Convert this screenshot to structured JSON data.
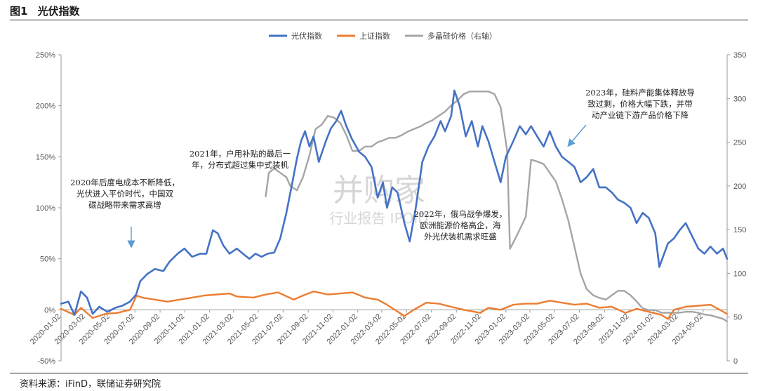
{
  "figure": {
    "number": "图1",
    "title": "光伏指数",
    "source": "资料来源：iFinD，联储证券研究院"
  },
  "colors": {
    "pv": "#4472C4",
    "sh": "#ED7D31",
    "poly": "#A5A5A5",
    "annotation_arrow": "#5B9BD5"
  },
  "watermark": {
    "main": "并购家",
    "sub": "行业报告 IPOID"
  },
  "annotations": [
    {
      "id": "a2020",
      "lines": [
        "2020年后度电成本不断降低，",
        "光伏进入平价时代，中国双",
        "碳战略带来需求高增"
      ]
    },
    {
      "id": "a2021",
      "lines": [
        "2021年，户用补贴的最后一",
        "年，分布式超过集中式装机"
      ]
    },
    {
      "id": "a2022",
      "lines": [
        "2022年，俄乌战争爆发，",
        "欧洲能源价格高企，海",
        "外光伏装机需求旺盛"
      ]
    },
    {
      "id": "a2023",
      "lines": [
        "2023年，硅料产能集体释放导",
        "致过剩，价格大幅下跌，并带",
        "动产业链下游产品价格下降"
      ]
    }
  ],
  "chart_data": {
    "type": "line",
    "title": "光伏指数",
    "legend_position": "top-center",
    "y_left": {
      "ticks": [
        "250%",
        "200%",
        "150%",
        "100%",
        "50%",
        "0%",
        "-50%"
      ],
      "range": [
        -50,
        250
      ],
      "unit": "%"
    },
    "y_right": {
      "ticks": [
        "350",
        "300",
        "250",
        "200",
        "150",
        "100",
        "50",
        "0"
      ],
      "range": [
        0,
        350
      ]
    },
    "x_ticks": [
      "2020-01-02",
      "2020-03-02",
      "2020-05-02",
      "2020-07-02",
      "2020-09-02",
      "2020-11-02",
      "2021-01-02",
      "2021-03-02",
      "2021-05-02",
      "2021-07-02",
      "2021-09-02",
      "2021-11-02",
      "2022-01-02",
      "2022-03-02",
      "2022-05-02",
      "2022-07-02",
      "2022-09-02",
      "2022-11-02",
      "2023-01-02",
      "2023-03-02",
      "2023-05-02",
      "2023-07-02",
      "2023-09-02",
      "2023-11-02",
      "2024-01-02",
      "2024-03-02",
      "2024-05-02"
    ],
    "x_range": [
      "2020-01-02",
      "2024-06-30"
    ],
    "series": [
      {
        "name": "光伏指数",
        "axis": "left",
        "x": [
          "2020-01-02",
          "2020-01-20",
          "2020-02-04",
          "2020-02-20",
          "2020-03-06",
          "2020-03-20",
          "2020-04-05",
          "2020-04-25",
          "2020-05-15",
          "2020-06-01",
          "2020-06-20",
          "2020-07-05",
          "2020-07-15",
          "2020-08-01",
          "2020-08-20",
          "2020-09-10",
          "2020-09-25",
          "2020-10-15",
          "2020-11-01",
          "2020-11-20",
          "2020-12-10",
          "2020-12-25",
          "2021-01-10",
          "2021-01-22",
          "2021-02-05",
          "2021-02-20",
          "2021-03-10",
          "2021-03-25",
          "2021-04-10",
          "2021-04-25",
          "2021-05-10",
          "2021-05-25",
          "2021-06-10",
          "2021-06-25",
          "2021-07-10",
          "2021-07-25",
          "2021-08-05",
          "2021-08-15",
          "2021-08-25",
          "2021-09-05",
          "2021-09-15",
          "2021-09-28",
          "2021-10-15",
          "2021-10-28",
          "2021-11-10",
          "2021-11-22",
          "2021-12-05",
          "2021-12-18",
          "2022-01-05",
          "2022-01-20",
          "2022-02-05",
          "2022-02-20",
          "2022-03-05",
          "2022-03-15",
          "2022-03-28",
          "2022-04-10",
          "2022-04-27",
          "2022-05-10",
          "2022-05-25",
          "2022-06-10",
          "2022-06-25",
          "2022-07-10",
          "2022-07-25",
          "2022-08-05",
          "2022-08-20",
          "2022-08-28",
          "2022-09-10",
          "2022-09-25",
          "2022-10-10",
          "2022-10-25",
          "2022-11-05",
          "2022-11-20",
          "2022-12-05",
          "2022-12-20",
          "2023-01-02",
          "2023-01-20",
          "2023-02-05",
          "2023-02-20",
          "2023-03-05",
          "2023-03-20",
          "2023-04-05",
          "2023-04-20",
          "2023-05-05",
          "2023-05-20",
          "2023-06-05",
          "2023-06-20",
          "2023-07-05",
          "2023-07-20",
          "2023-08-05",
          "2023-08-20",
          "2023-09-05",
          "2023-09-20",
          "2023-10-05",
          "2023-10-20",
          "2023-11-05",
          "2023-11-20",
          "2023-12-05",
          "2023-12-20",
          "2024-01-05",
          "2024-01-15",
          "2024-02-05",
          "2024-02-20",
          "2024-03-05",
          "2024-03-20",
          "2024-04-05",
          "2024-04-20",
          "2024-05-05",
          "2024-05-20",
          "2024-06-05",
          "2024-06-20",
          "2024-06-30"
        ],
        "y": [
          6,
          8,
          -5,
          18,
          12,
          -4,
          3,
          -2,
          2,
          4,
          8,
          15,
          28,
          35,
          40,
          38,
          47,
          55,
          60,
          52,
          55,
          55,
          78,
          75,
          63,
          55,
          60,
          55,
          50,
          55,
          52,
          55,
          56,
          70,
          95,
          125,
          148,
          165,
          175,
          160,
          170,
          145,
          165,
          178,
          185,
          195,
          180,
          168,
          155,
          150,
          140,
          110,
          125,
          100,
          120,
          115,
          85,
          67,
          100,
          145,
          160,
          170,
          185,
          175,
          190,
          215,
          200,
          170,
          185,
          160,
          180,
          165,
          145,
          125,
          150,
          165,
          180,
          172,
          180,
          170,
          160,
          175,
          160,
          150,
          145,
          140,
          125,
          130,
          138,
          120,
          120,
          115,
          108,
          105,
          100,
          85,
          95,
          90,
          75,
          42,
          65,
          70,
          78,
          85,
          72,
          60,
          55,
          62,
          55,
          60,
          50
        ]
      },
      {
        "name": "上证指数",
        "axis": "left",
        "x": [
          "2020-01-02",
          "2020-02-04",
          "2020-02-20",
          "2020-03-20",
          "2020-04-20",
          "2020-05-20",
          "2020-06-20",
          "2020-07-06",
          "2020-07-20",
          "2020-08-20",
          "2020-09-20",
          "2020-10-20",
          "2020-11-20",
          "2020-12-20",
          "2021-01-20",
          "2021-02-20",
          "2021-03-10",
          "2021-04-20",
          "2021-05-20",
          "2021-06-20",
          "2021-07-28",
          "2021-08-20",
          "2021-09-15",
          "2021-10-20",
          "2021-11-20",
          "2021-12-20",
          "2022-01-20",
          "2022-02-20",
          "2022-03-15",
          "2022-04-27",
          "2022-05-20",
          "2022-06-20",
          "2022-07-20",
          "2022-08-20",
          "2022-09-20",
          "2022-10-31",
          "2022-11-20",
          "2022-12-20",
          "2023-01-20",
          "2023-02-20",
          "2023-03-20",
          "2023-04-20",
          "2023-05-20",
          "2023-06-20",
          "2023-07-20",
          "2023-08-20",
          "2023-09-20",
          "2023-10-23",
          "2023-11-20",
          "2023-12-20",
          "2024-01-20",
          "2024-02-05",
          "2024-02-20",
          "2024-03-20",
          "2024-04-20",
          "2024-05-20",
          "2024-06-30"
        ],
        "y": [
          1,
          -5,
          2,
          -8,
          -4,
          -3,
          0,
          14,
          12,
          10,
          8,
          10,
          12,
          14,
          15,
          16,
          13,
          12,
          15,
          17,
          10,
          14,
          18,
          15,
          16,
          17,
          12,
          10,
          5,
          -6,
          0,
          7,
          6,
          3,
          0,
          -3,
          2,
          0,
          5,
          6,
          6,
          9,
          7,
          5,
          6,
          2,
          3,
          -3,
          1,
          -2,
          -5,
          -9,
          0,
          3,
          4,
          5,
          -4
        ]
      },
      {
        "name": "多晶硅价格（右轴）",
        "axis": "right",
        "x": [
          "2021-05-20",
          "2021-05-28",
          "2021-06-10",
          "2021-06-25",
          "2021-07-10",
          "2021-07-20",
          "2021-08-05",
          "2021-08-20",
          "2021-09-05",
          "2021-09-20",
          "2021-10-05",
          "2021-10-20",
          "2021-11-05",
          "2021-11-20",
          "2021-12-05",
          "2021-12-20",
          "2022-01-05",
          "2022-01-20",
          "2022-02-05",
          "2022-02-20",
          "2022-03-05",
          "2022-03-20",
          "2022-04-05",
          "2022-04-20",
          "2022-05-05",
          "2022-05-20",
          "2022-06-05",
          "2022-06-20",
          "2022-07-05",
          "2022-07-20",
          "2022-08-05",
          "2022-08-20",
          "2022-09-05",
          "2022-09-20",
          "2022-10-05",
          "2022-10-20",
          "2022-11-05",
          "2022-11-20",
          "2022-12-05",
          "2022-12-20",
          "2023-01-05",
          "2023-01-12",
          "2023-01-20",
          "2023-02-05",
          "2023-02-20",
          "2023-03-05",
          "2023-03-20",
          "2023-04-05",
          "2023-04-20",
          "2023-05-05",
          "2023-05-20",
          "2023-06-05",
          "2023-06-20",
          "2023-07-05",
          "2023-07-20",
          "2023-08-05",
          "2023-08-20",
          "2023-09-05",
          "2023-09-20",
          "2023-10-05",
          "2023-10-20",
          "2023-11-05",
          "2023-11-20",
          "2023-12-05",
          "2023-12-20",
          "2024-01-05",
          "2024-01-20",
          "2024-02-05",
          "2024-02-20",
          "2024-03-05",
          "2024-03-20",
          "2024-04-05",
          "2024-04-20",
          "2024-05-05",
          "2024-05-20",
          "2024-06-05",
          "2024-06-20",
          "2024-06-30"
        ],
        "y": [
          188,
          215,
          220,
          215,
          210,
          200,
          195,
          210,
          235,
          265,
          270,
          280,
          278,
          272,
          258,
          240,
          240,
          245,
          245,
          250,
          252,
          255,
          255,
          258,
          262,
          265,
          268,
          272,
          275,
          280,
          285,
          292,
          298,
          305,
          308,
          308,
          308,
          308,
          305,
          290,
          240,
          128,
          135,
          150,
          165,
          230,
          228,
          225,
          215,
          205,
          185,
          160,
          130,
          100,
          82,
          75,
          72,
          70,
          75,
          80,
          80,
          75,
          68,
          60,
          58,
          58,
          55,
          55,
          55,
          55,
          56,
          56,
          55,
          53,
          52,
          50,
          48,
          45
        ]
      }
    ]
  }
}
